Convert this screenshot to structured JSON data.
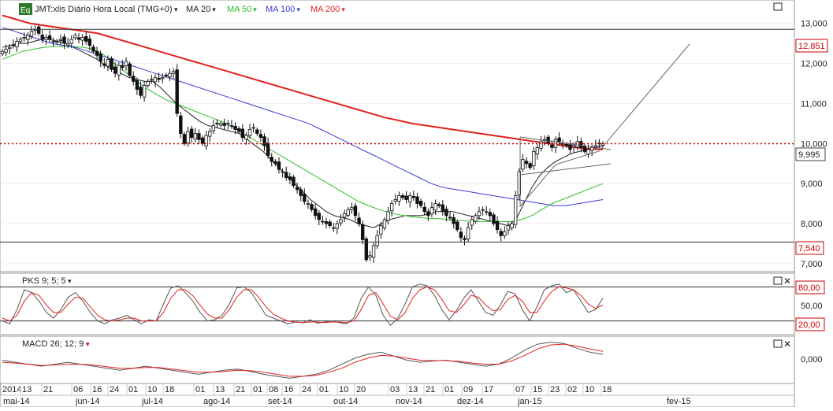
{
  "header": {
    "eq_badge": "Eq",
    "symbol_title": "JMT:xlis Diário Hora Local (TMG+0)",
    "dropdown_glyph": "▾",
    "indicators": [
      {
        "label": "MA 20",
        "color": "#222222"
      },
      {
        "label": "MA 50",
        "color": "#2bbf2b"
      },
      {
        "label": "MA 100",
        "color": "#3a3ad6"
      },
      {
        "label": "MA 200",
        "color": "#e0221c"
      }
    ]
  },
  "panes": {
    "price": {
      "y_ticks": [
        "13,000",
        "12,000",
        "11,000",
        "10,000",
        "9,000",
        "8,000",
        "7,000"
      ],
      "badges": {
        "top_line": "12,851",
        "last_price": "9,995",
        "bottom_line": "7,540"
      }
    },
    "pks": {
      "title": "PKS 9; 5; 5",
      "badges": [
        "80,00",
        "20,00"
      ],
      "y_tick": "50,00"
    },
    "macd": {
      "title": "MACD 26; 12; 9",
      "y_tick": "0,000"
    }
  },
  "x_axis": {
    "days": [
      "2014",
      "13",
      "21",
      "06",
      "16",
      "24",
      "01",
      "10",
      "18",
      "01",
      "13",
      "21",
      "01",
      "08",
      "16",
      "24",
      "01",
      "10",
      "20",
      "03",
      "13",
      "21",
      "01",
      "09",
      "17",
      "07",
      "15",
      "23",
      "02",
      "10",
      "18"
    ],
    "months": [
      "mai-14",
      "jun-14",
      "jul-14",
      "ago-14",
      "set-14",
      "out-14",
      "nov-14",
      "dez-14",
      "jan-15",
      "fev-15"
    ]
  },
  "chart_data": [
    {
      "type": "candlestick",
      "title": "JMT:xlis Diário Hora Local (TMG+0)",
      "x_range": [
        "2014-05-02",
        "2015-02-20"
      ],
      "ylim": [
        6.9,
        13.15
      ],
      "horizontal_lines": [
        12.851,
        7.54
      ],
      "last_price": 9.995,
      "close": [
        12.3,
        12.35,
        12.4,
        12.45,
        12.55,
        12.6,
        12.65,
        12.7,
        12.8,
        12.85,
        12.75,
        12.6,
        12.65,
        12.6,
        12.55,
        12.55,
        12.6,
        12.5,
        12.5,
        12.6,
        12.7,
        12.6,
        12.65,
        12.55,
        12.45,
        12.3,
        12.2,
        12.05,
        11.95,
        12.1,
        11.85,
        11.75,
        11.95,
        11.9,
        12.05,
        11.7,
        11.55,
        11.35,
        11.2,
        11.45,
        11.55,
        11.6,
        11.65,
        11.6,
        11.65,
        11.7,
        11.75,
        11.8,
        10.75,
        10.25,
        10.0,
        10.3,
        10.15,
        10.25,
        10.1,
        10.0,
        10.2,
        10.3,
        10.45,
        10.5,
        10.5,
        10.45,
        10.5,
        10.45,
        10.35,
        10.3,
        10.15,
        10.2,
        10.35,
        10.4,
        10.25,
        10.15,
        9.95,
        9.7,
        9.55,
        9.5,
        9.35,
        9.3,
        9.15,
        9.1,
        8.95,
        8.85,
        8.7,
        8.55,
        8.5,
        8.35,
        8.2,
        8.1,
        8.05,
        8.0,
        7.95,
        7.9,
        8.0,
        8.1,
        8.25,
        8.35,
        8.4,
        8.2,
        8.0,
        7.6,
        7.1,
        7.2,
        7.45,
        7.7,
        7.95,
        8.1,
        8.3,
        8.5,
        8.6,
        8.7,
        8.65,
        8.6,
        8.7,
        8.65,
        8.5,
        8.45,
        8.3,
        8.2,
        8.4,
        8.5,
        8.45,
        8.3,
        8.2,
        8.15,
        8.0,
        7.85,
        7.65,
        7.6,
        7.9,
        8.1,
        8.2,
        8.3,
        8.35,
        8.3,
        8.2,
        8.0,
        7.85,
        7.7,
        7.8,
        7.95,
        8.0,
        8.7,
        9.3,
        9.6,
        9.5,
        9.4,
        9.8,
        9.9,
        10.05,
        10.1,
        10.0,
        9.9,
        10.1,
        10.05,
        10.0,
        9.95,
        9.85,
        9.95,
        10.05,
        9.9,
        9.8,
        9.85,
        9.9,
        9.95,
        10.0,
        9.995
      ],
      "moving_averages": [
        {
          "name": "MA 20",
          "values": [
            12.4,
            12.45,
            12.5,
            12.5,
            12.55,
            12.6,
            12.6,
            12.55,
            12.5,
            12.4,
            12.3,
            12.2,
            12.1,
            11.95,
            11.85,
            11.75,
            11.65,
            11.6,
            11.55,
            11.55,
            11.4,
            11.2,
            11.0,
            10.85,
            10.7,
            10.55,
            10.45,
            10.4,
            10.35,
            10.3,
            10.25,
            10.1,
            9.95,
            9.8,
            9.6,
            9.4,
            9.2,
            9.0,
            8.8,
            8.6,
            8.45,
            8.3,
            8.2,
            8.15,
            8.1,
            8.0,
            7.95,
            7.9,
            8.0,
            8.1,
            8.15,
            8.2,
            8.2,
            8.2,
            8.25,
            8.3,
            8.3,
            8.3,
            8.25,
            8.2,
            8.15,
            8.1,
            8.05,
            8.0,
            7.95,
            8.1,
            8.5,
            8.9,
            9.2,
            9.4,
            9.55,
            9.65,
            9.75,
            9.8,
            9.85,
            9.9,
            9.95
          ]
        },
        {
          "name": "MA 50",
          "values": [
            12.1,
            12.2,
            12.3,
            12.35,
            12.4,
            12.42,
            12.43,
            12.42,
            12.4,
            12.35,
            12.2,
            12.0,
            11.8,
            11.6,
            11.4,
            11.25,
            11.1,
            11.0,
            10.9,
            10.8,
            10.7,
            10.6,
            10.5,
            10.35,
            10.2,
            10.05,
            9.9,
            9.75,
            9.6,
            9.45,
            9.3,
            9.15,
            9.0,
            8.85,
            8.7,
            8.55,
            8.45,
            8.35,
            8.28,
            8.22,
            8.18,
            8.15,
            8.13,
            8.12,
            8.1,
            8.08,
            8.06,
            8.05,
            8.05,
            8.05,
            8.05,
            8.1,
            8.2,
            8.35,
            8.5,
            8.6,
            8.7,
            8.8,
            8.9,
            9.0
          ]
        },
        {
          "name": "MA 100",
          "values": [
            12.9,
            12.8,
            12.7,
            12.6,
            12.5,
            12.45,
            12.4,
            12.3,
            12.2,
            12.1,
            12.0,
            11.9,
            11.8,
            11.7,
            11.6,
            11.5,
            11.4,
            11.3,
            11.2,
            11.1,
            11.0,
            10.9,
            10.8,
            10.7,
            10.6,
            10.5,
            10.35,
            10.2,
            10.05,
            9.9,
            9.75,
            9.6,
            9.45,
            9.3,
            9.15,
            9.0,
            8.9,
            8.85,
            8.8,
            8.75,
            8.7,
            8.65,
            8.6,
            8.55,
            8.5,
            8.45,
            8.45,
            8.5,
            8.55,
            8.6
          ]
        },
        {
          "name": "MA 200",
          "values": [
            13.2,
            13.1,
            13.0,
            12.95,
            12.9,
            12.85,
            12.8,
            12.75,
            12.65,
            12.55,
            12.45,
            12.35,
            12.25,
            12.15,
            12.05,
            11.95,
            11.85,
            11.75,
            11.65,
            11.55,
            11.45,
            11.35,
            11.25,
            11.15,
            11.05,
            10.95,
            10.85,
            10.75,
            10.65,
            10.58,
            10.5,
            10.45,
            10.4,
            10.35,
            10.3,
            10.25,
            10.2,
            10.15,
            10.1,
            10.05,
            10.0,
            9.95,
            9.9,
            9.87,
            9.85
          ]
        }
      ]
    },
    {
      "type": "line",
      "title": "PKS 9; 5; 5",
      "ylim": [
        0,
        100
      ],
      "reference_lines": [
        80,
        20
      ],
      "series": [
        {
          "name": "PKS %K",
          "values": [
            20,
            15,
            40,
            75,
            70,
            55,
            35,
            25,
            40,
            62,
            70,
            55,
            35,
            20,
            15,
            22,
            25,
            30,
            22,
            15,
            22,
            20,
            50,
            78,
            82,
            70,
            55,
            35,
            20,
            22,
            30,
            50,
            78,
            80,
            70,
            50,
            30,
            25,
            20,
            15,
            18,
            17,
            22,
            16,
            18,
            20,
            17,
            15,
            25,
            60,
            80,
            65,
            30,
            12,
            25,
            50,
            80,
            85,
            82,
            65,
            40,
            22,
            38,
            60,
            75,
            55,
            35,
            30,
            48,
            72,
            68,
            40,
            20,
            45,
            75,
            82,
            85,
            70,
            75,
            55,
            35,
            40,
            60
          ]
        },
        {
          "name": "PKS %D",
          "values": [
            25,
            20,
            30,
            55,
            70,
            65,
            48,
            35,
            35,
            50,
            62,
            60,
            45,
            30,
            22,
            20,
            22,
            25,
            25,
            20,
            20,
            20,
            35,
            60,
            75,
            75,
            65,
            48,
            32,
            25,
            25,
            40,
            62,
            75,
            75,
            62,
            45,
            32,
            25,
            20,
            18,
            17,
            18,
            18,
            17,
            18,
            18,
            17,
            20,
            40,
            65,
            70,
            50,
            28,
            22,
            35,
            60,
            75,
            80,
            75,
            58,
            38,
            35,
            48,
            65,
            62,
            48,
            38,
            40,
            58,
            65,
            55,
            35,
            35,
            55,
            72,
            80,
            78,
            75,
            65,
            50,
            42,
            48
          ]
        }
      ]
    },
    {
      "type": "line",
      "title": "MACD 26; 12; 9",
      "series": [
        {
          "name": "MACD",
          "values": [
            0.1,
            0.05,
            0.0,
            -0.05,
            0.0,
            0.05,
            0.0,
            -0.05,
            -0.1,
            -0.15,
            -0.1,
            -0.05,
            -0.1,
            -0.15,
            -0.2,
            -0.25,
            -0.2,
            -0.15,
            -0.12,
            -0.18,
            -0.25,
            -0.3,
            -0.35,
            -0.3,
            -0.25,
            -0.15,
            0.0,
            0.15,
            0.25,
            0.3,
            0.2,
            0.1,
            0.05,
            0.08,
            0.1,
            0.05,
            0.0,
            -0.05,
            0.0,
            0.15,
            0.35,
            0.5,
            0.55,
            0.52,
            0.4,
            0.3,
            0.25
          ]
        },
        {
          "name": "Signal",
          "values": [
            0.05,
            0.03,
            0.0,
            -0.03,
            -0.02,
            0.0,
            0.0,
            -0.02,
            -0.06,
            -0.1,
            -0.1,
            -0.08,
            -0.08,
            -0.12,
            -0.16,
            -0.2,
            -0.2,
            -0.18,
            -0.15,
            -0.16,
            -0.2,
            -0.25,
            -0.3,
            -0.3,
            -0.28,
            -0.2,
            -0.1,
            0.05,
            0.15,
            0.22,
            0.2,
            0.15,
            0.1,
            0.09,
            0.09,
            0.07,
            0.03,
            0.0,
            0.0,
            0.08,
            0.22,
            0.38,
            0.48,
            0.5,
            0.45,
            0.38,
            0.32
          ]
        }
      ]
    }
  ]
}
